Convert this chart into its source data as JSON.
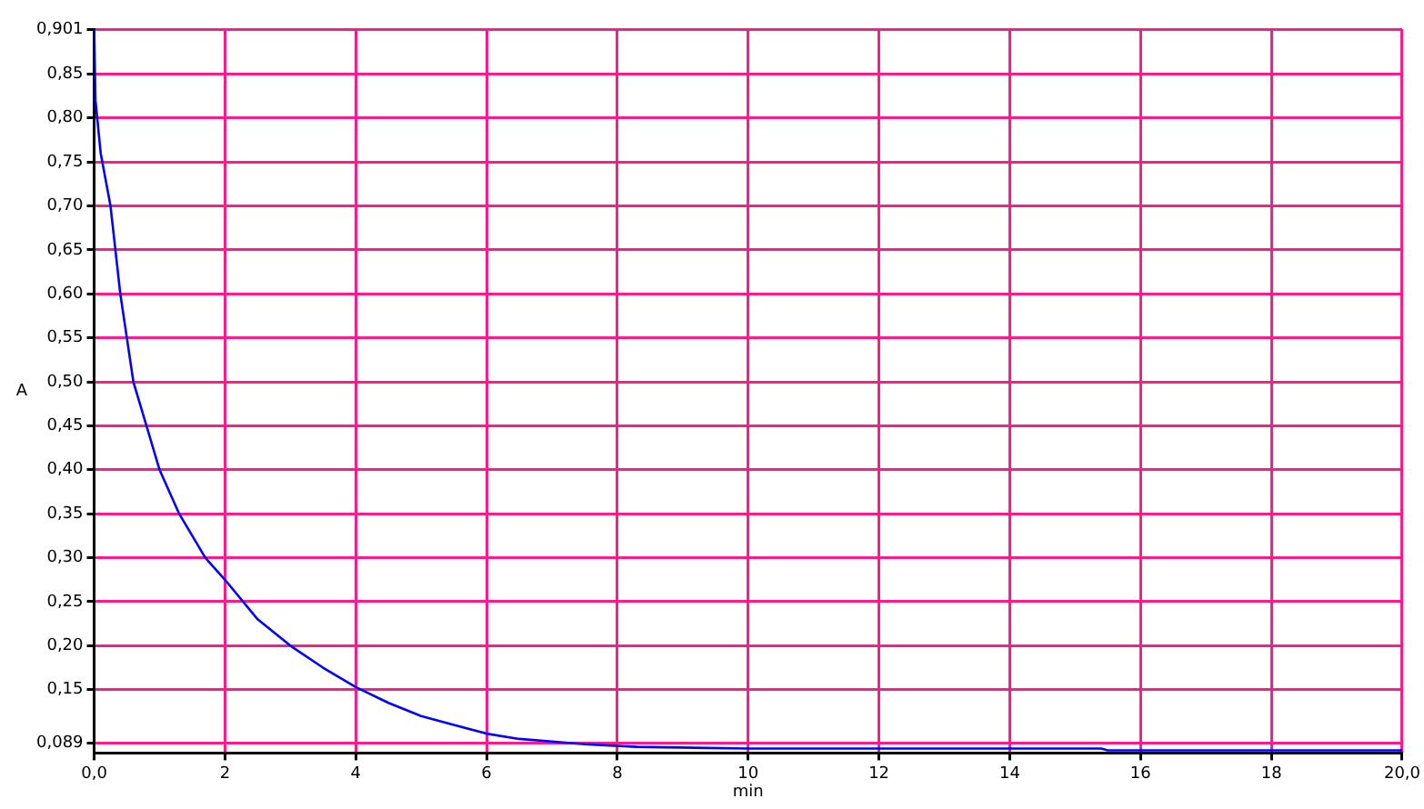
{
  "chart_data": {
    "type": "line",
    "xlabel": "min",
    "ylabel": "A",
    "x": [
      0,
      0.02,
      0.1,
      0.25,
      0.4,
      0.5,
      0.6,
      0.8,
      1.0,
      1.3,
      1.7,
      2.0,
      2.5,
      3.0,
      3.5,
      4.0,
      4.5,
      5.0,
      5.5,
      6.0,
      6.5,
      7.0,
      7.5,
      8.3,
      10,
      15.4,
      15.5,
      20
    ],
    "series": [
      {
        "color": "#0000ff",
        "values": [
          0.901,
          0.82,
          0.76,
          0.7,
          0.6,
          0.55,
          0.5,
          0.45,
          0.4,
          0.35,
          0.3,
          0.275,
          0.23,
          0.2,
          0.175,
          0.153,
          0.135,
          0.12,
          0.11,
          0.1,
          0.094,
          0.091,
          0.088,
          0.085,
          0.083,
          0.083,
          0.081,
          0.081
        ]
      }
    ],
    "xlim": [
      0,
      20
    ],
    "ylim": [
      0.078,
      0.901
    ],
    "xticks": [
      {
        "value": 0,
        "label": "0,0"
      },
      2,
      4,
      6,
      8,
      10,
      12,
      14,
      16,
      18,
      {
        "value": 20,
        "label": "20,0"
      }
    ],
    "yticks": [
      {
        "value": 0.089,
        "label": "0,089"
      },
      {
        "value": 0.15,
        "label": "0,15"
      },
      {
        "value": 0.2,
        "label": "0,20"
      },
      {
        "value": 0.25,
        "label": "0,25"
      },
      {
        "value": 0.3,
        "label": "0,30"
      },
      {
        "value": 0.35,
        "label": "0,35"
      },
      {
        "value": 0.4,
        "label": "0,40"
      },
      {
        "value": 0.45,
        "label": "0,45"
      },
      {
        "value": 0.5,
        "label": "0,50"
      },
      {
        "value": 0.55,
        "label": "0,55"
      },
      {
        "value": 0.6,
        "label": "0,60"
      },
      {
        "value": 0.65,
        "label": "0,65"
      },
      {
        "value": 0.7,
        "label": "0,70"
      },
      {
        "value": 0.75,
        "label": "0,75"
      },
      {
        "value": 0.8,
        "label": "0,80"
      },
      {
        "value": 0.85,
        "label": "0,85"
      },
      {
        "value": 0.901,
        "label": "0,901"
      }
    ],
    "grid": true,
    "legend": false,
    "marker": "none",
    "line_style": "solid"
  }
}
